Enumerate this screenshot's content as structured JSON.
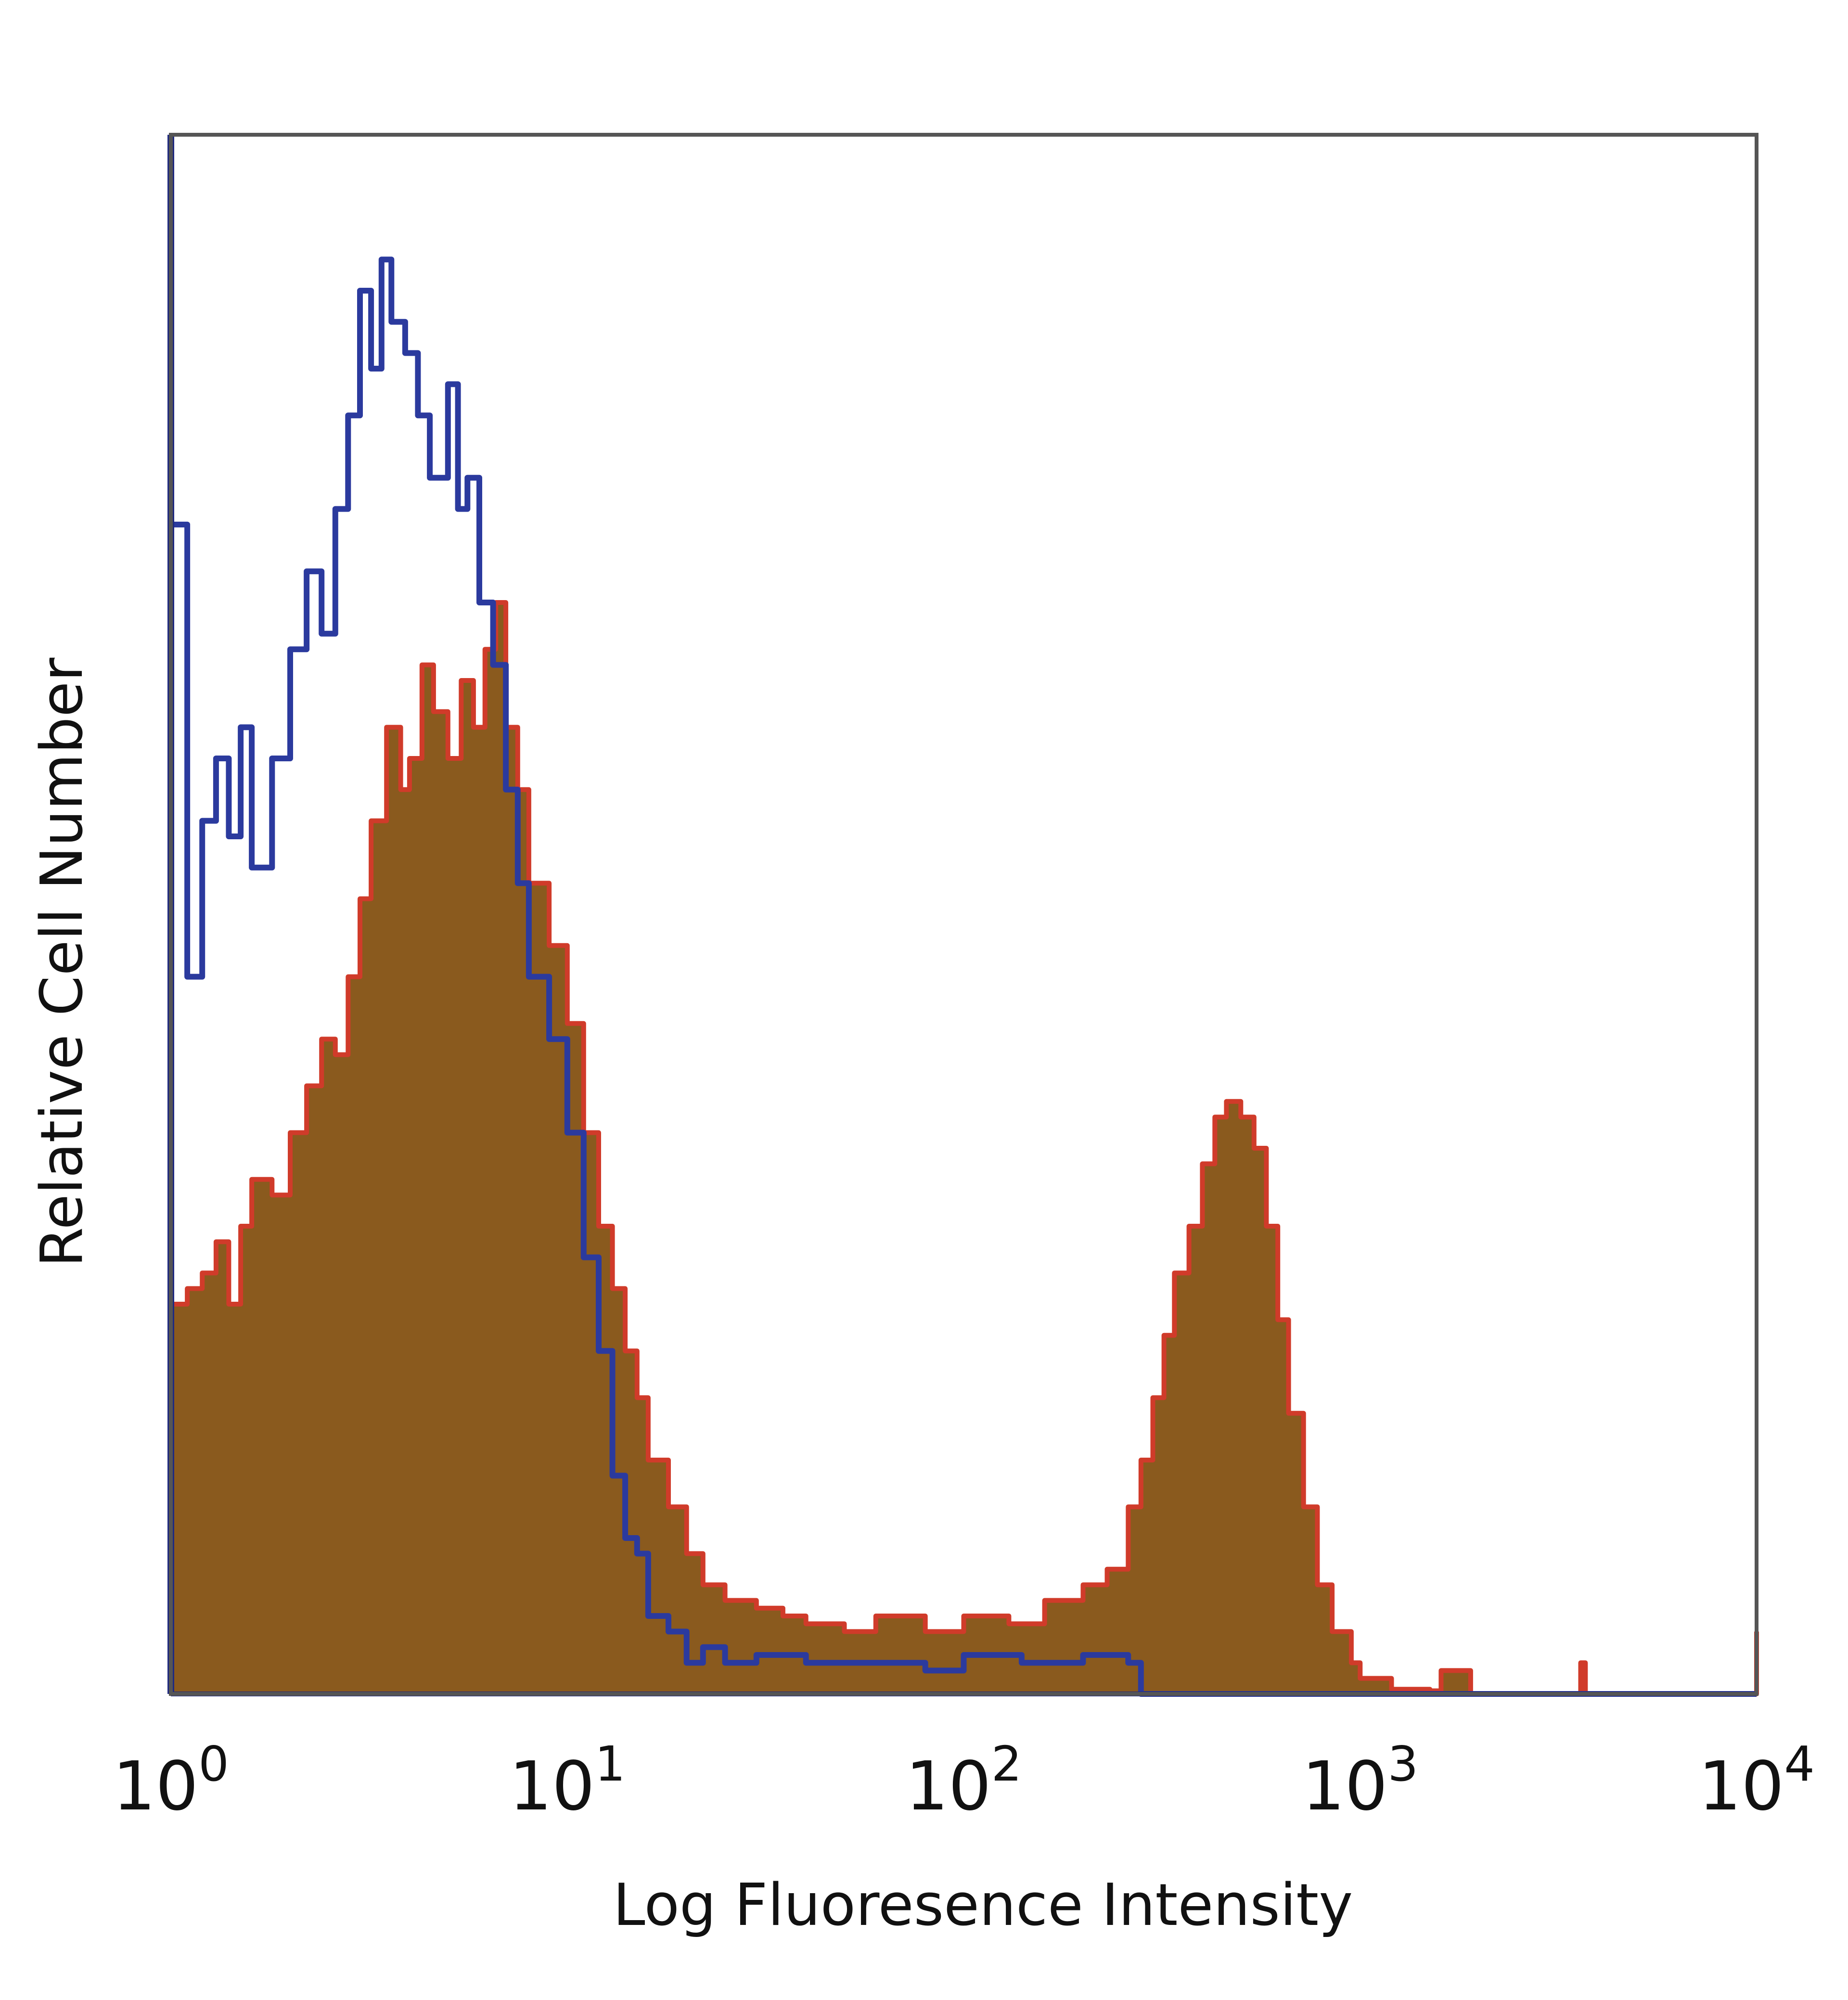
{
  "chart_data": {
    "type": "area",
    "xlabel": "Log Fluoresence Intensity",
    "ylabel": "Relative Cell Number",
    "x_scale": "log",
    "xlim": [
      1,
      10000
    ],
    "ylim": [
      0,
      1
    ],
    "x_ticks": [
      {
        "base": "10",
        "exp": "0",
        "value": 1
      },
      {
        "base": "10",
        "exp": "1",
        "value": 10
      },
      {
        "base": "10",
        "exp": "2",
        "value": 100
      },
      {
        "base": "10",
        "exp": "3",
        "value": 1000
      },
      {
        "base": "10",
        "exp": "4",
        "value": 10000
      }
    ],
    "grid": false,
    "legend": "none",
    "series": [
      {
        "style": "outline",
        "color": "#2b3a9e",
        "points": [
          [
            1.0,
            0.75
          ],
          [
            1.1,
            0.46
          ],
          [
            1.2,
            0.56
          ],
          [
            1.3,
            0.6
          ],
          [
            1.4,
            0.55
          ],
          [
            1.5,
            0.62
          ],
          [
            1.6,
            0.53
          ],
          [
            1.8,
            0.6
          ],
          [
            2.0,
            0.67
          ],
          [
            2.2,
            0.72
          ],
          [
            2.4,
            0.68
          ],
          [
            2.6,
            0.76
          ],
          [
            2.8,
            0.82
          ],
          [
            3.0,
            0.9
          ],
          [
            3.2,
            0.85
          ],
          [
            3.4,
            0.92
          ],
          [
            3.6,
            0.88
          ],
          [
            3.9,
            0.86
          ],
          [
            4.2,
            0.82
          ],
          [
            4.5,
            0.78
          ],
          [
            5.0,
            0.84
          ],
          [
            5.3,
            0.76
          ],
          [
            5.6,
            0.78
          ],
          [
            6.0,
            0.7
          ],
          [
            6.5,
            0.66
          ],
          [
            7.0,
            0.58
          ],
          [
            7.5,
            0.52
          ],
          [
            8.0,
            0.46
          ],
          [
            9.0,
            0.42
          ],
          [
            10.0,
            0.36
          ],
          [
            11.0,
            0.28
          ],
          [
            12.0,
            0.22
          ],
          [
            13.0,
            0.14
          ],
          [
            14.0,
            0.1
          ],
          [
            15.0,
            0.09
          ],
          [
            16.0,
            0.05
          ],
          [
            18.0,
            0.04
          ],
          [
            20.0,
            0.02
          ],
          [
            22.0,
            0.03
          ],
          [
            25.0,
            0.02
          ],
          [
            30.0,
            0.025
          ],
          [
            40.0,
            0.02
          ],
          [
            60.0,
            0.02
          ],
          [
            80.0,
            0.015
          ],
          [
            100.0,
            0.025
          ],
          [
            140.0,
            0.02
          ],
          [
            200.0,
            0.025
          ],
          [
            260.0,
            0.02
          ],
          [
            280.0,
            0.0
          ],
          [
            10000.0,
            0.0
          ]
        ]
      },
      {
        "style": "filled",
        "color": "#d03b2a",
        "fill": "#8a5a1e",
        "points": [
          [
            1.0,
            0.25
          ],
          [
            1.1,
            0.26
          ],
          [
            1.2,
            0.27
          ],
          [
            1.3,
            0.29
          ],
          [
            1.4,
            0.25
          ],
          [
            1.5,
            0.3
          ],
          [
            1.6,
            0.33
          ],
          [
            1.8,
            0.32
          ],
          [
            2.0,
            0.36
          ],
          [
            2.2,
            0.39
          ],
          [
            2.4,
            0.42
          ],
          [
            2.6,
            0.41
          ],
          [
            2.8,
            0.46
          ],
          [
            3.0,
            0.51
          ],
          [
            3.2,
            0.56
          ],
          [
            3.5,
            0.62
          ],
          [
            3.8,
            0.58
          ],
          [
            4.0,
            0.6
          ],
          [
            4.3,
            0.66
          ],
          [
            4.6,
            0.63
          ],
          [
            5.0,
            0.6
          ],
          [
            5.4,
            0.65
          ],
          [
            5.8,
            0.62
          ],
          [
            6.2,
            0.67
          ],
          [
            6.6,
            0.7
          ],
          [
            7.0,
            0.62
          ],
          [
            7.5,
            0.58
          ],
          [
            8.0,
            0.52
          ],
          [
            9.0,
            0.48
          ],
          [
            10.0,
            0.43
          ],
          [
            11.0,
            0.36
          ],
          [
            12.0,
            0.3
          ],
          [
            13.0,
            0.26
          ],
          [
            14.0,
            0.22
          ],
          [
            15.0,
            0.19
          ],
          [
            16.0,
            0.15
          ],
          [
            18.0,
            0.12
          ],
          [
            20.0,
            0.09
          ],
          [
            22.0,
            0.07
          ],
          [
            25.0,
            0.06
          ],
          [
            30.0,
            0.055
          ],
          [
            35.0,
            0.05
          ],
          [
            40.0,
            0.045
          ],
          [
            50.0,
            0.04
          ],
          [
            60.0,
            0.05
          ],
          [
            80.0,
            0.04
          ],
          [
            100.0,
            0.05
          ],
          [
            130.0,
            0.045
          ],
          [
            160.0,
            0.06
          ],
          [
            200.0,
            0.07
          ],
          [
            230.0,
            0.08
          ],
          [
            260.0,
            0.12
          ],
          [
            280.0,
            0.15
          ],
          [
            300.0,
            0.19
          ],
          [
            320.0,
            0.23
          ],
          [
            340.0,
            0.27
          ],
          [
            370.0,
            0.3
          ],
          [
            400.0,
            0.34
          ],
          [
            430.0,
            0.37
          ],
          [
            460.0,
            0.38
          ],
          [
            500.0,
            0.37
          ],
          [
            540.0,
            0.35
          ],
          [
            580.0,
            0.3
          ],
          [
            620.0,
            0.24
          ],
          [
            660.0,
            0.18
          ],
          [
            720.0,
            0.12
          ],
          [
            780.0,
            0.07
          ],
          [
            850.0,
            0.04
          ],
          [
            950.0,
            0.02
          ],
          [
            1000.0,
            0.01
          ],
          [
            1200.0,
            0.003
          ],
          [
            1500.0,
            0.002
          ],
          [
            1600.0,
            0.015
          ],
          [
            1900.0,
            0.0
          ],
          [
            3500.0,
            0.0
          ],
          [
            3600.0,
            0.02
          ],
          [
            3700.0,
            0.0
          ],
          [
            9600.0,
            0.0
          ],
          [
            10000.0,
            0.04
          ]
        ]
      }
    ]
  }
}
